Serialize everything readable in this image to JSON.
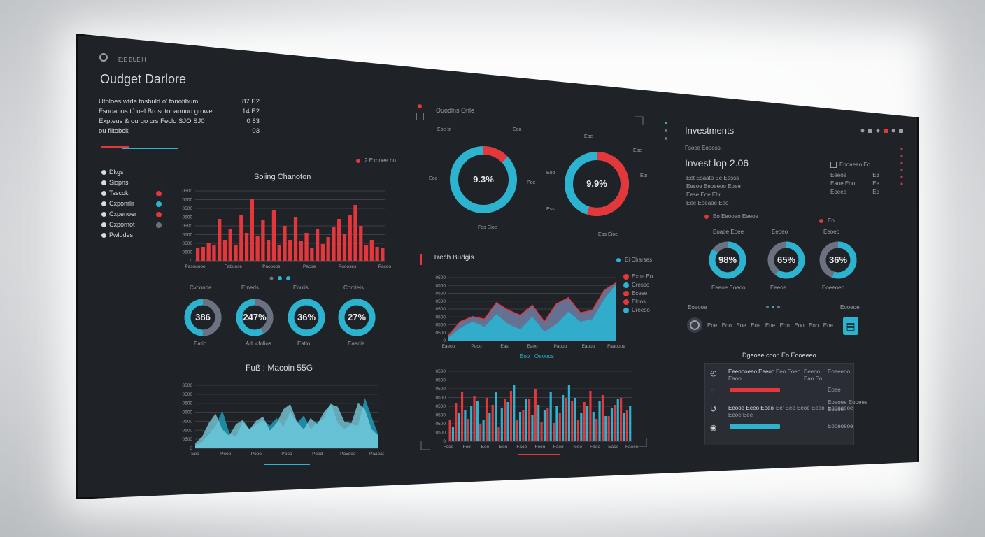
{
  "colors": {
    "accent_red": "#e4373c",
    "accent_blue": "#2bb3d0",
    "bg": "#1f2227",
    "gray": "#6b7180"
  },
  "header": {
    "small_label": "E:E BUEIH",
    "title": "Oudget Darlore"
  },
  "summary": {
    "lines": [
      {
        "left": "Utbloes wtde tosbuld  o’ fonotibum",
        "right": "87 E2"
      },
      {
        "left": "Fsnoabus tJ  oel Brosotooaonuo  growe",
        "right": "14 E2"
      },
      {
        "left": "Expteus  &  ourgo  crs  Feclo   SJO  SJ0",
        "right": "0 63"
      },
      {
        "left": "ou filtobck",
        "right": "03"
      }
    ]
  },
  "sidebar": {
    "items": [
      {
        "label": "Dkgs",
        "icon": "dot-icon"
      },
      {
        "label": "Siopns",
        "icon": "dot-icon"
      },
      {
        "label": "Tsscok",
        "icon": "dot-icon"
      },
      {
        "label": "Cxponrlir",
        "icon": "dot-icon"
      },
      {
        "label": "Cxpenoer",
        "icon": "dot-icon"
      },
      {
        "label": "Cxpornot",
        "icon": "dot-icon"
      },
      {
        "label": "Pwlddes",
        "icon": "dot-icon"
      }
    ],
    "legend_colors": [
      "#e4373c",
      "#2bb3d0",
      "#e4373c",
      "#6b7180"
    ]
  },
  "spending": {
    "legend_label": "2 Exooee bo",
    "title": "Soiing Chanoton",
    "chart_data": {
      "type": "bar",
      "title": "Soiing Chanoton",
      "y_ticks": [
        "0500",
        "0500",
        "0500",
        "0500",
        "0500",
        "0500",
        "0500",
        "0500",
        "0"
      ],
      "x_labels": [
        "Pasouooe",
        "Fabuose",
        "Pacooos",
        "Pacoe",
        "Puooses",
        "Pacoor"
      ],
      "ylim": [
        0,
        100
      ],
      "values": [
        18,
        20,
        26,
        22,
        60,
        30,
        46,
        22,
        66,
        40,
        88,
        36,
        58,
        30,
        72,
        22,
        50,
        30,
        62,
        28,
        40,
        18,
        46,
        24,
        34,
        48,
        60,
        38,
        66,
        80,
        50,
        22,
        30,
        20,
        18
      ]
    }
  },
  "small_donuts": [
    {
      "title": "Cvconde",
      "value": "386",
      "pct": 0.5,
      "color": "#6b7180",
      "sub": "Eatio"
    },
    {
      "title": "Emeds",
      "value": "247%",
      "pct": 0.42,
      "color": "#6b7180",
      "sub": "Aducfolios"
    },
    {
      "title": "Eouiis",
      "value": "36%",
      "pct": 0.62,
      "color": "#2bb3d0",
      "sub": "Eatio"
    },
    {
      "title": "Comieis",
      "value": "27%",
      "pct": 0.72,
      "color": "#2bb3d0",
      "sub": "Eaacie"
    }
  ],
  "area_left": {
    "title": "Fuß : Macoin 55G",
    "chart_data": {
      "type": "area",
      "y_ticks": [
        "0500",
        "0500",
        "0500",
        "0500",
        "0500",
        "0500",
        "0500",
        "0"
      ],
      "x_labels": [
        "Eoo",
        "Pooo",
        "Pooo",
        "Pooo",
        "Pood",
        "Pa5ooo",
        "Paaoaoo"
      ],
      "ylim": [
        0,
        100
      ],
      "series": [
        {
          "name": "front",
          "values": [
            8,
            18,
            40,
            55,
            30,
            20,
            38,
            45,
            30,
            44,
            50,
            28,
            40,
            62,
            70,
            42,
            30,
            48,
            38,
            58,
            70,
            66,
            42,
            40,
            72,
            62,
            30,
            20
          ]
        },
        {
          "name": "back",
          "values": [
            4,
            10,
            22,
            35,
            60,
            25,
            18,
            42,
            30,
            38,
            44,
            36,
            48,
            34,
            58,
            40,
            52,
            30,
            42,
            48,
            72,
            40,
            30,
            38,
            36,
            80,
            50,
            20
          ]
        }
      ]
    }
  },
  "center": {
    "donuts_title": "Ouodlns Onle",
    "donut1": {
      "value": "9.3%",
      "pct": 0.13,
      "labels": [
        "Eoe bt",
        "Eoo",
        "Eoo",
        "Poe",
        "Fes Eioe"
      ]
    },
    "donut2": {
      "value": "9.9%",
      "pct": 0.55,
      "labels": [
        "Ebe",
        "Eoe",
        "Eoo",
        "Eoo",
        "Ess",
        "Eas Eioe"
      ]
    },
    "trend_title": "Trecb Budgis",
    "trend_legend_title": "Ei Charses",
    "trend_legend": [
      {
        "label": "Exoe Eo",
        "color": "#e4373c"
      },
      {
        "label": "Cresso",
        "color": "#2bb3d0"
      },
      {
        "label": "Ecese",
        "color": "#e4373c"
      },
      {
        "label": "Eloos",
        "color": "#e4373c"
      },
      {
        "label": "Creeso",
        "color": "#2bb3d0"
      }
    ],
    "trend_chart": {
      "type": "area",
      "y_ticks": [
        "0500",
        "0500",
        "0500",
        "0500",
        "0500",
        "0500",
        "0500",
        "0500",
        "0"
      ],
      "x_labels": [
        "Eaeoo",
        "Pooo",
        "Eas",
        "Eaoo",
        "Paooo",
        "Eaooo",
        "Faaoooe"
      ],
      "ylim": [
        0,
        100
      ],
      "series": [
        {
          "name": "Exoe Eo",
          "values": [
            8,
            30,
            38,
            34,
            60,
            48,
            40,
            56,
            30,
            58,
            68,
            44,
            48,
            80,
            92
          ]
        },
        {
          "name": "Cresso",
          "values": [
            5,
            20,
            30,
            22,
            42,
            26,
            18,
            38,
            14,
            26,
            46,
            30,
            34,
            66,
            90
          ]
        }
      ]
    },
    "bar_title": "Eoo : Oeooos",
    "bar_chart": {
      "type": "bar",
      "y_ticks": [
        "0500",
        "0500",
        "0500",
        "0500",
        "0500",
        "0500",
        "0500",
        "0500",
        "0"
      ],
      "x_labels": [
        "Faoo",
        "Foo",
        "Eoo",
        "Eoo",
        "Faoo",
        "Fooo",
        "Faoo",
        "Pooo",
        "Faoo",
        "Eaoo",
        "Faoos"
      ],
      "ylim": [
        0,
        100
      ],
      "series": [
        {
          "name": "red",
          "values": [
            30,
            55,
            70,
            32,
            65,
            25,
            62,
            52,
            20,
            60,
            72,
            30,
            44,
            60,
            74,
            28,
            48,
            26,
            40,
            62,
            58,
            30,
            56,
            72,
            32,
            66,
            36,
            52,
            62,
            44
          ]
        },
        {
          "name": "blue",
          "values": [
            20,
            40,
            44,
            50,
            58,
            30,
            40,
            70,
            48,
            56,
            80,
            42,
            60,
            38,
            52,
            44,
            70,
            50,
            66,
            80,
            62,
            40,
            50,
            42,
            58,
            36,
            48,
            60,
            40,
            50
          ]
        }
      ]
    }
  },
  "investments": {
    "title": "Investments",
    "subtitle": "Fsoce Eoooss",
    "headline": "Invest lop 2.06",
    "lines": [
      "Eet  Esaatp  Ee  Eesss",
      "Eesoe  Eeoeeoo Eoee",
      "Eese Eoe Ehr",
      "Eee Eoeaoe Eeo"
    ],
    "side": {
      "header": "Eooaeeo Eo",
      "rows": [
        {
          "k": "Eeeos",
          "v": "E3"
        },
        {
          "k": "Eaoe Eoo",
          "v": "Ee"
        },
        {
          "k": "Eoeee",
          "v": "Ee"
        }
      ]
    },
    "mini_legend": {
      "left": "Eo Eeooeo Eeeoe",
      "right": "Eo"
    },
    "donuts": [
      {
        "title": "Eoaoe Eoee",
        "value": "98%",
        "pct": 0.85,
        "sub": "Eeeoe Eoeoo"
      },
      {
        "title": "Eeoeo",
        "value": "65%",
        "pct": 0.6,
        "sub": "Eeeoe"
      },
      {
        "title": "Eeoeo",
        "value": "36%",
        "pct": 0.55,
        "sub": "Eoeeoeo"
      }
    ],
    "controls": {
      "label": "Eoeooe",
      "timeline": [
        "Eoe",
        "Eoo",
        "Eoe",
        "Eoe",
        "Eoe",
        "Eoo",
        "Eoo",
        "Eoo",
        "Eoe"
      ],
      "right_label": "Eooeoe",
      "button_icon": "chart-icon"
    },
    "table": {
      "title": "Dgeoee  coon  Eo  Eooeeeo",
      "rows": [
        {
          "icon": "clock-icon",
          "name": "Eeeoooeeo Eeeoo",
          "sub": "Eaoo",
          "mid": "Eeo Eoeo",
          "val": "Eeeoo",
          "extra": "Eao Eo",
          "right": "Eoeeeoo"
        },
        {
          "icon": "circle-icon",
          "name": "",
          "sub": "",
          "mid": "",
          "val": "",
          "extra": "",
          "right": "Eoee"
        },
        {
          "icon": "refresh-icon",
          "name": "Eeooe Eeeo Eoeo",
          "sub": "Eeoe Eee",
          "mid": "Ee' Eee Eeoe Eeeo",
          "val": "",
          "extra": "",
          "right": "Eeeoeeoe"
        },
        {
          "icon": "record-icon",
          "name": "",
          "sub": "",
          "mid": "",
          "val": "",
          "extra": "",
          "right": "Eooeoeoe"
        }
      ],
      "extra_right": [
        "Eoeoee Eooeee",
        "Eeooe"
      ]
    }
  }
}
